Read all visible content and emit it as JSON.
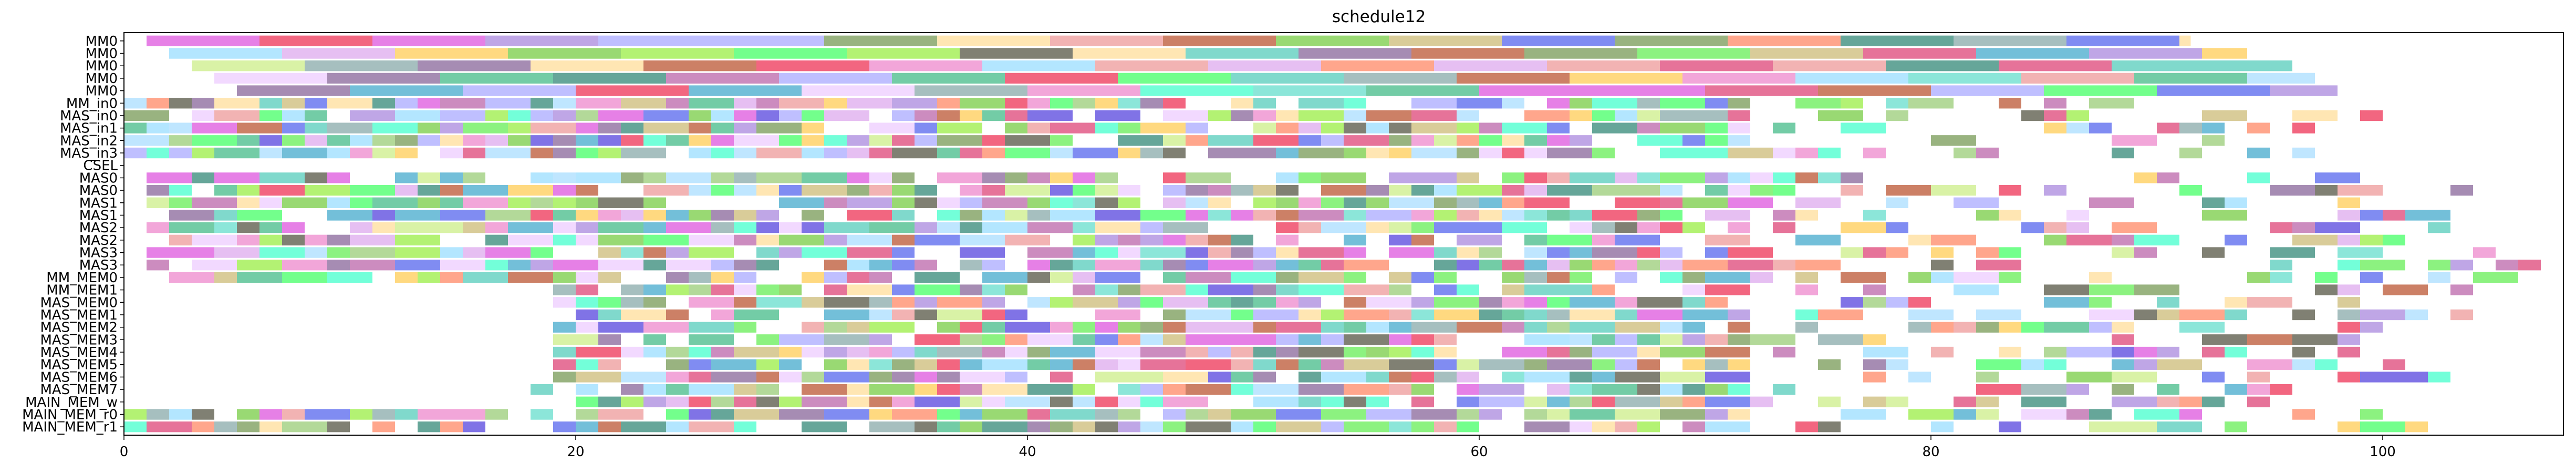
{
  "chart_data": {
    "type": "gantt",
    "title": "schedule12",
    "xlabel": "",
    "ylabel": "",
    "xlim": [
      0,
      108
    ],
    "x_ticks": [
      0,
      20,
      40,
      60,
      80,
      100
    ],
    "grid": false,
    "rows": [
      "MM0",
      "MM0",
      "MM0",
      "MM0",
      "MM0",
      "MM_in0",
      "MAS_in0",
      "MAS_in1",
      "MAS_in2",
      "MAS_in3",
      "CSEL",
      "MAS0",
      "MAS0",
      "MAS1",
      "MAS1",
      "MAS2",
      "MAS2",
      "MAS3",
      "MAS3",
      "MM_MEM0",
      "MM_MEM1",
      "MAS_MEM0",
      "MAS_MEM1",
      "MAS_MEM2",
      "MAS_MEM3",
      "MAS_MEM4",
      "MAS_MEM5",
      "MAS_MEM6",
      "MAS_MEM7",
      "MAIN_MEM_w",
      "MAIN_MEM_r0",
      "MAIN_MEM_r1"
    ],
    "segments": [
      {
        "row": 0,
        "cells": [
          [
            1,
            6
          ],
          [
            6,
            11
          ],
          [
            11,
            16
          ],
          [
            16,
            21
          ],
          [
            21,
            26
          ],
          [
            26,
            31
          ],
          [
            31,
            36
          ],
          [
            36,
            41
          ],
          [
            41,
            46
          ],
          [
            46,
            51
          ],
          [
            51,
            56
          ],
          [
            56,
            61
          ],
          [
            61,
            66
          ],
          [
            66,
            71
          ],
          [
            71,
            76
          ],
          [
            76,
            81
          ],
          [
            81,
            86
          ],
          [
            86,
            91
          ],
          [
            91,
            91.5
          ]
        ]
      },
      {
        "row": 1,
        "cells": [
          [
            2,
            7
          ],
          [
            7,
            12
          ],
          [
            12,
            17
          ],
          [
            17,
            22
          ],
          [
            22,
            27
          ],
          [
            27,
            32
          ],
          [
            32,
            37
          ],
          [
            37,
            42
          ],
          [
            42,
            47
          ],
          [
            47,
            52
          ],
          [
            52,
            57
          ],
          [
            57,
            62
          ],
          [
            62,
            67
          ],
          [
            67,
            72
          ],
          [
            72,
            77
          ],
          [
            77,
            82
          ],
          [
            82,
            87
          ],
          [
            87,
            92
          ],
          [
            92,
            94
          ]
        ]
      },
      {
        "row": 2,
        "cells": [
          [
            3,
            8
          ],
          [
            8,
            13
          ],
          [
            13,
            18
          ],
          [
            18,
            23
          ],
          [
            23,
            28
          ],
          [
            28,
            33
          ],
          [
            33,
            38
          ],
          [
            38,
            43
          ],
          [
            43,
            48
          ],
          [
            48,
            53
          ],
          [
            53,
            58
          ],
          [
            58,
            63
          ],
          [
            63,
            68
          ],
          [
            68,
            73
          ],
          [
            73,
            78
          ],
          [
            78,
            83
          ],
          [
            83,
            88
          ],
          [
            88,
            93
          ],
          [
            93,
            96
          ]
        ]
      },
      {
        "row": 3,
        "cells": [
          [
            4,
            9
          ],
          [
            9,
            14
          ],
          [
            14,
            19
          ],
          [
            19,
            24
          ],
          [
            24,
            29
          ],
          [
            29,
            34
          ],
          [
            34,
            39
          ],
          [
            39,
            44
          ],
          [
            44,
            49
          ],
          [
            49,
            54
          ],
          [
            54,
            59
          ],
          [
            59,
            64
          ],
          [
            64,
            69
          ],
          [
            69,
            74
          ],
          [
            74,
            79
          ],
          [
            79,
            84
          ],
          [
            84,
            89
          ],
          [
            89,
            94
          ],
          [
            94,
            97
          ]
        ]
      },
      {
        "row": 4,
        "cells": [
          [
            5,
            10
          ],
          [
            10,
            15
          ],
          [
            15,
            20
          ],
          [
            20,
            25
          ],
          [
            25,
            30
          ],
          [
            30,
            35
          ],
          [
            35,
            40
          ],
          [
            40,
            45
          ],
          [
            45,
            50
          ],
          [
            50,
            55
          ],
          [
            55,
            60
          ],
          [
            60,
            65
          ],
          [
            65,
            70
          ],
          [
            70,
            75
          ],
          [
            75,
            80
          ],
          [
            80,
            85
          ],
          [
            85,
            90
          ],
          [
            90,
            95
          ],
          [
            95,
            98
          ]
        ]
      }
    ],
    "dense_rows": [
      {
        "row": 5,
        "start": 0,
        "end": 90
      },
      {
        "row": 6,
        "start": 0,
        "end": 104
      },
      {
        "row": 7,
        "start": 0,
        "end": 99
      },
      {
        "row": 8,
        "start": 0,
        "end": 98
      },
      {
        "row": 9,
        "start": 0,
        "end": 99
      },
      {
        "row": 11,
        "start": 1,
        "end": 99
      },
      {
        "row": 12,
        "start": 1,
        "end": 104
      },
      {
        "row": 13,
        "start": 1,
        "end": 99
      },
      {
        "row": 14,
        "start": 2,
        "end": 103
      },
      {
        "row": 15,
        "start": 1,
        "end": 103
      },
      {
        "row": 16,
        "start": 2,
        "end": 102
      },
      {
        "row": 17,
        "start": 1,
        "end": 105
      },
      {
        "row": 18,
        "start": 1,
        "end": 107
      },
      {
        "row": 19,
        "start": 2,
        "end": 108
      },
      {
        "row": 20,
        "start": 19,
        "end": 104
      },
      {
        "row": 21,
        "start": 19,
        "end": 99
      },
      {
        "row": 22,
        "start": 20,
        "end": 104
      },
      {
        "row": 23,
        "start": 19,
        "end": 101
      },
      {
        "row": 24,
        "start": 19,
        "end": 100
      },
      {
        "row": 25,
        "start": 19,
        "end": 99
      },
      {
        "row": 26,
        "start": 19,
        "end": 101
      },
      {
        "row": 27,
        "start": 19,
        "end": 103
      },
      {
        "row": 28,
        "start": 18,
        "end": 96
      },
      {
        "row": 29,
        "start": 20,
        "end": 98
      },
      {
        "row": 30,
        "start": 0,
        "end": 100
      },
      {
        "row": 31,
        "start": 0,
        "end": 102
      }
    ],
    "palette": [
      "#44bb88",
      "#99cc77",
      "#5544dd",
      "#ddaaee",
      "#bb66aa",
      "#66ee55",
      "#779955",
      "#88aaaa",
      "#338877",
      "#44ff66",
      "#ee3355",
      "#ccbb77",
      "#99ee44",
      "#dd4477",
      "#55ccbb",
      "#886699",
      "#ffcc55",
      "#44aacc",
      "#ee88cc",
      "#aaddff",
      "#ff8866",
      "#66ddcc",
      "#dd55dd",
      "#aaaaff",
      "#ee9999",
      "#77cc44",
      "#ccee88",
      "#5566ee",
      "#bb5533",
      "#99ddff",
      "#ffdd99",
      "#44ffcc",
      "#555544",
      "#eeccff",
      "#aa88dd"
    ]
  }
}
